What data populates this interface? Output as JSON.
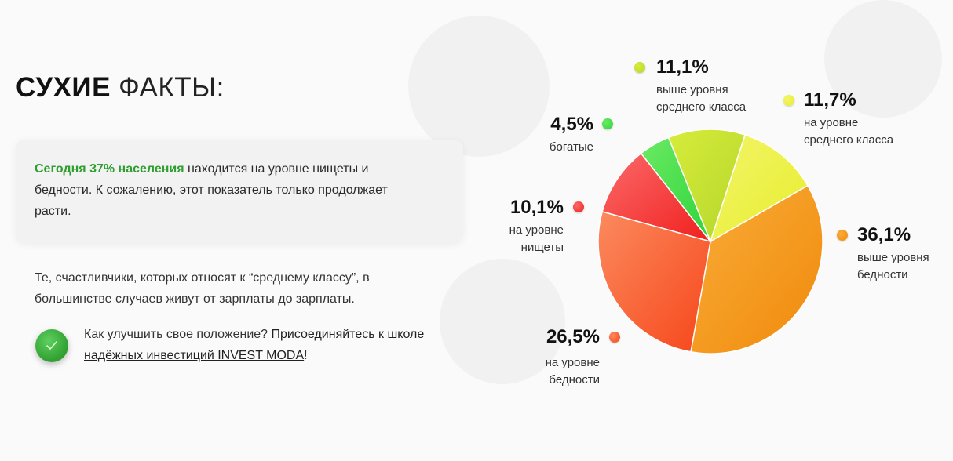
{
  "heading": {
    "bold": "СУХИЕ",
    "light": "ФАКТЫ:"
  },
  "card": {
    "accent": "Сегодня 37% населения",
    "text": " находится на уровне нищеты и бедности. К сожалению, этот показатель только продолжает расти."
  },
  "note": "Те, счастливчики, которых относят к “среднему классу”, в большинстве случаев живут от зарплаты до зарплаты.",
  "cta": {
    "text": "Как улучшить свое положение? ",
    "link": "Присоединяйтесь к школе надёжных инвестиций INVEST MODA",
    "tail": "!"
  },
  "icons": {
    "check": "checkmark-icon"
  },
  "chart_data": {
    "type": "pie",
    "slices": [
      {
        "label_pct": "11,1%",
        "desc": "выше уровня среднего класса",
        "value": 11.1,
        "color": "#b3d62c",
        "color2": "#d8ec3a"
      },
      {
        "label_pct": "11,7%",
        "desc": "на уровне среднего класса",
        "value": 11.7,
        "color": "#e6ee2c",
        "color2": "#f4f46a"
      },
      {
        "label_pct": "36,1%",
        "desc": "выше уровня бедности",
        "value": 36.1,
        "color": "#f08a0a",
        "color2": "#f9ac3a"
      },
      {
        "label_pct": "26,5%",
        "desc": "на уровне бедности",
        "value": 26.5,
        "color": "#f6461a",
        "color2": "#fb8a5e"
      },
      {
        "label_pct": "10,1%",
        "desc": "на уровне нищеты",
        "value": 10.1,
        "color": "#f0201e",
        "color2": "#fb6a6a"
      },
      {
        "label_pct": "4,5%",
        "desc": "богатые",
        "value": 4.5,
        "color": "#2fd43a",
        "color2": "#6bea64"
      }
    ]
  }
}
